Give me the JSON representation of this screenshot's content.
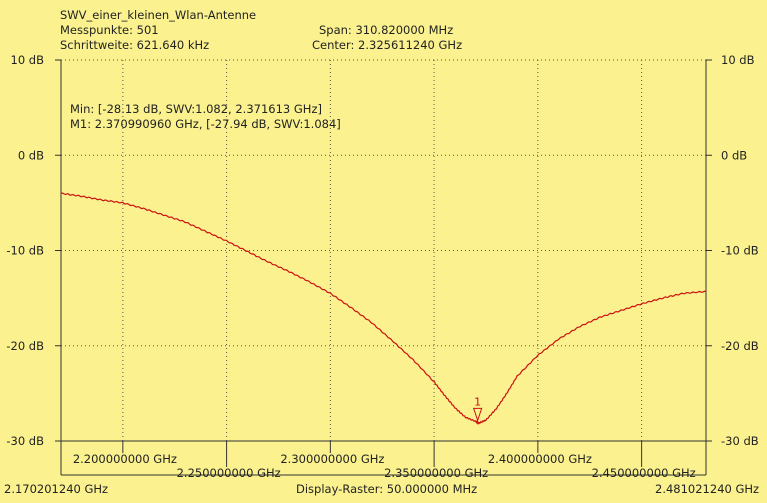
{
  "header": {
    "title": "SWV_einer_kleinen_Wlan-Antenne",
    "points": "Messpunkte:  501",
    "step": "Schrittweite: 621.640 kHz",
    "span": "Span: 310.820000 MHz",
    "center": "Center: 2.325611240 GHz"
  },
  "info": {
    "min": "Min: [-28.13 dB, SWV:1.082, 2.371613 GHz]",
    "marker": "M1: 2.370990960 GHz, [-27.94 dB, SWV:1.084]"
  },
  "footer": {
    "start": "2.170201240 GHz",
    "raster": "Display-Raster: 50.000000 MHz",
    "stop": "2.481021240 GHz"
  },
  "colors": {
    "background": "#fbf28f",
    "trace": "#cc1111",
    "grid": "#555555"
  },
  "chart_data": {
    "type": "line",
    "xlim": [
      2.17020124,
      2.48102124
    ],
    "ylim": [
      -30,
      10
    ],
    "y_ticks": [
      10,
      0,
      -10,
      -20,
      -30
    ],
    "y_tick_labels": [
      "10 dB",
      "0 dB",
      "-10 dB",
      "-20 dB",
      "-30 dB"
    ],
    "x_ticks": [
      2.2,
      2.25,
      2.3,
      2.35,
      2.4,
      2.45
    ],
    "x_tick_labels": [
      "2.200000000 GHz",
      "2.250000000 GHz",
      "2.300000000 GHz",
      "2.350000000 GHz",
      "2.400000000 GHz",
      "2.450000000 GHz"
    ],
    "grid": true,
    "series": [
      {
        "x": [
          2.1702,
          2.18,
          2.19,
          2.2,
          2.21,
          2.22,
          2.23,
          2.24,
          2.25,
          2.26,
          2.27,
          2.28,
          2.29,
          2.3,
          2.31,
          2.32,
          2.33,
          2.34,
          2.35,
          2.355,
          2.36,
          2.365,
          2.37,
          2.3716,
          2.375,
          2.38,
          2.385,
          2.39,
          2.4,
          2.41,
          2.42,
          2.43,
          2.44,
          2.45,
          2.46,
          2.47,
          2.481
        ],
        "y": [
          -4.0,
          -4.3,
          -4.7,
          -5.0,
          -5.6,
          -6.3,
          -7.0,
          -8.0,
          -9.0,
          -10.1,
          -11.2,
          -12.2,
          -13.3,
          -14.5,
          -16.0,
          -17.6,
          -19.5,
          -21.5,
          -23.8,
          -25.2,
          -26.5,
          -27.5,
          -27.94,
          -28.13,
          -27.8,
          -26.6,
          -25.0,
          -23.2,
          -21.0,
          -19.3,
          -18.0,
          -17.0,
          -16.3,
          -15.6,
          -15.0,
          -14.5,
          -14.3
        ]
      }
    ],
    "markers": [
      {
        "label": "1",
        "x": 2.37099096,
        "y": -27.94
      }
    ]
  }
}
